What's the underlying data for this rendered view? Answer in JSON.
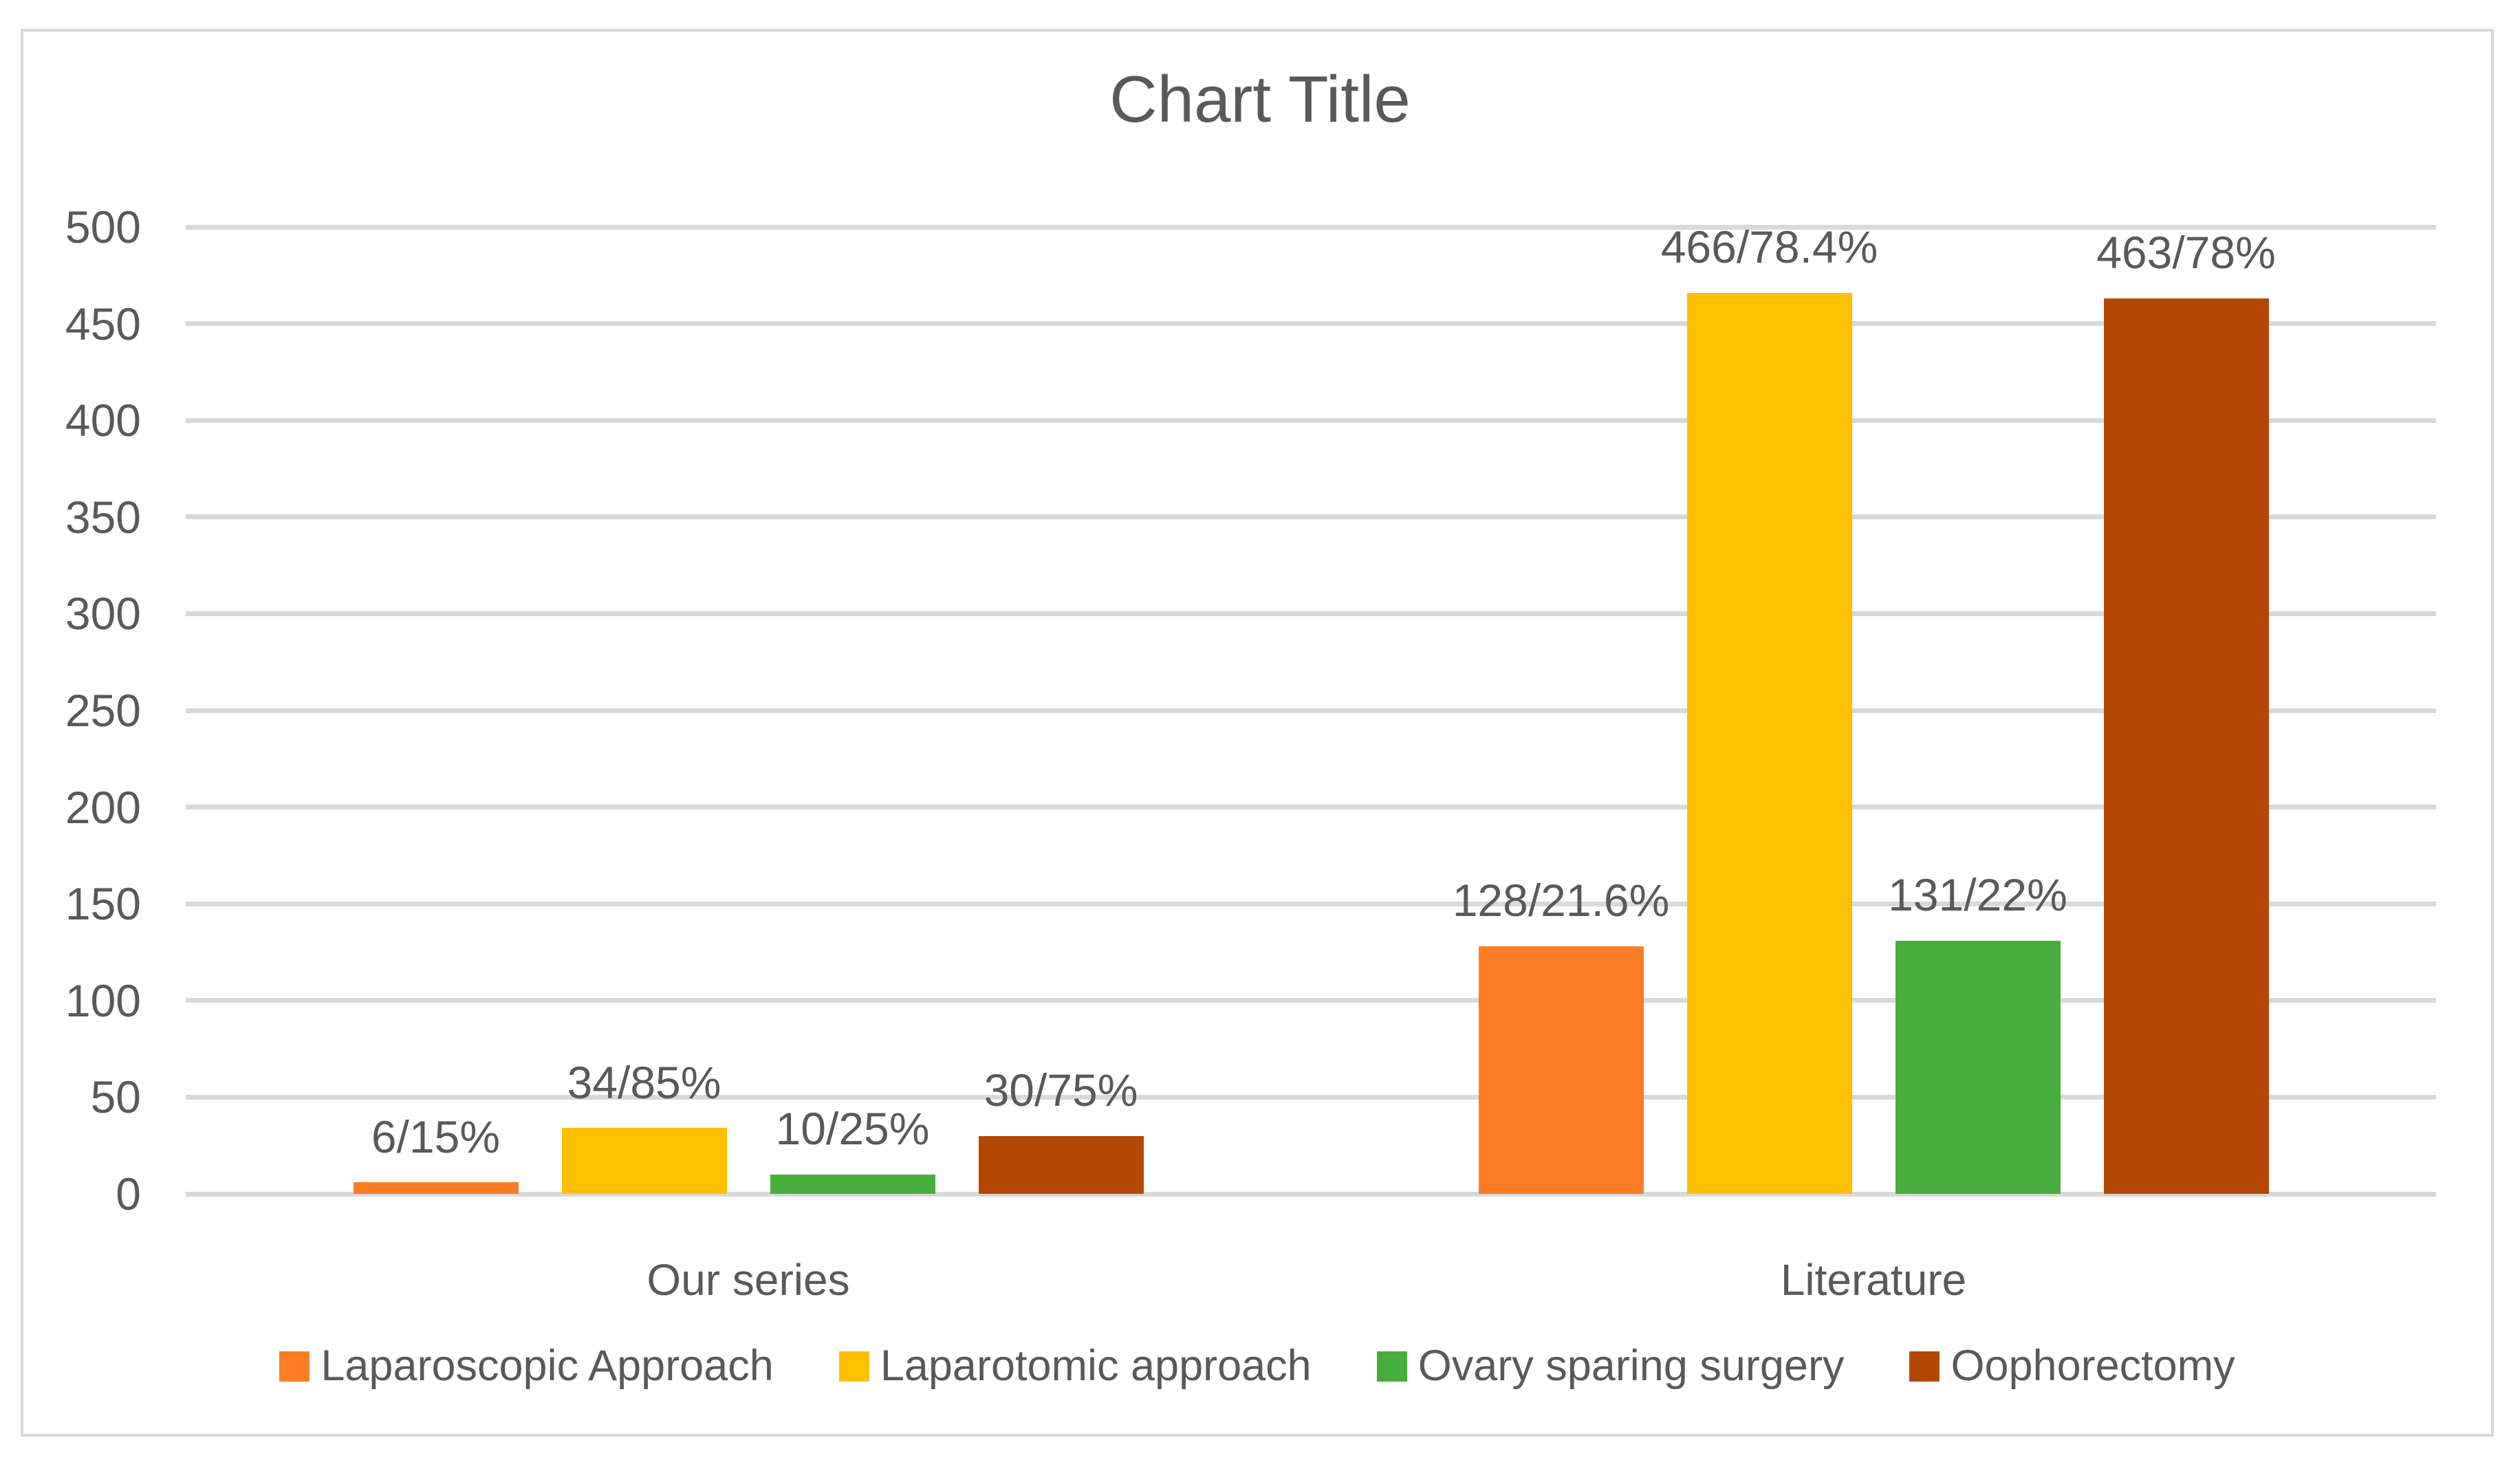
{
  "chart_data": {
    "type": "bar",
    "title": "Chart Title",
    "categories": [
      "Our series",
      "Literature"
    ],
    "series": [
      {
        "name": "Laparoscopic Approach",
        "color": "#FC7D26",
        "values": [
          6,
          128
        ],
        "data_labels": [
          "6/15%",
          "128/21.6%"
        ]
      },
      {
        "name": "Laparotomic approach",
        "color": "#FFC000",
        "values": [
          34,
          466
        ],
        "data_labels": [
          "34/85%",
          "466/78.4%"
        ]
      },
      {
        "name": "Ovary sparing surgery",
        "color": "#47AE3B",
        "values": [
          10,
          131
        ],
        "data_labels": [
          "10/25%",
          "131/22%"
        ]
      },
      {
        "name": "Oophorectomy",
        "color": "#B44802",
        "values": [
          30,
          463
        ],
        "data_labels": [
          "30/75%",
          "463/78%"
        ]
      }
    ],
    "xlabel": "",
    "ylabel": "",
    "ylim": [
      0,
      500
    ],
    "yticks": [
      0,
      50,
      100,
      150,
      200,
      250,
      300,
      350,
      400,
      450,
      500
    ],
    "grid": true,
    "legend_position": "bottom",
    "colors": {
      "text": "#595959",
      "gridline": "#D9D9D9",
      "frame_border": "#D9D9D9",
      "background": "#FFFFFF"
    }
  }
}
